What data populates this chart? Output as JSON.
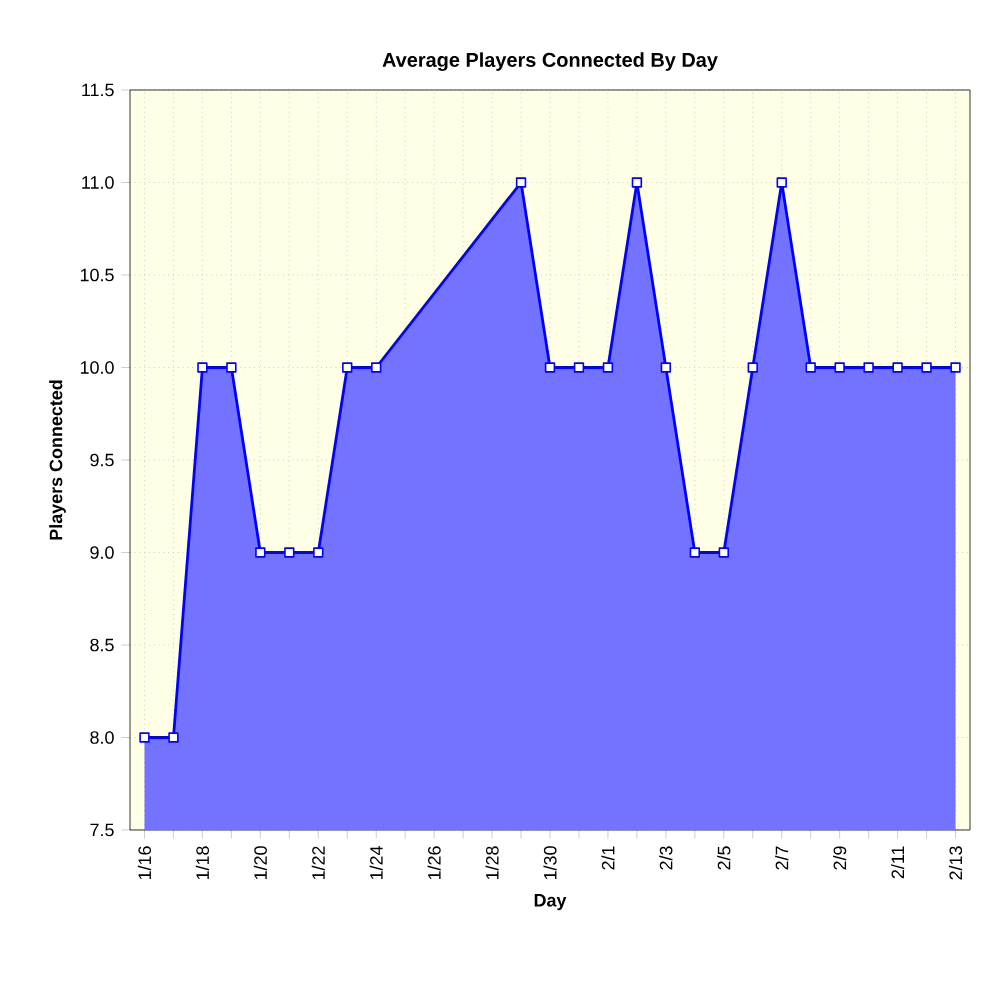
{
  "chart_data": {
    "type": "area",
    "title": "Average Players Connected By Day",
    "xlabel": "Day",
    "ylabel": "Players Connected",
    "categories": [
      "1/16",
      null,
      "1/18",
      null,
      "1/20",
      null,
      "1/22",
      null,
      "1/24",
      null,
      "1/26",
      null,
      "1/28",
      null,
      "1/30",
      null,
      "2/1",
      null,
      "2/3",
      null,
      "2/5",
      null,
      "2/7",
      null,
      "2/9",
      null,
      "2/11",
      null,
      "2/13"
    ],
    "values": [
      8,
      8,
      10,
      10,
      9,
      9,
      9,
      10,
      10,
      null,
      null,
      null,
      null,
      11,
      10,
      10,
      10,
      11,
      10,
      9,
      9,
      10,
      11,
      10,
      10,
      10,
      10,
      10,
      10
    ],
    "color": "#0000ff",
    "ylim": [
      7.5,
      11.5
    ],
    "yticks": [
      {
        "value": 7.5,
        "label": "7.5"
      },
      {
        "value": 8,
        "label": "8.0"
      },
      {
        "value": 8.5,
        "label": "8.5"
      },
      {
        "value": 9,
        "label": "9.0"
      },
      {
        "value": 9.5,
        "label": "9.5"
      },
      {
        "value": 10,
        "label": "10.0"
      },
      {
        "value": 10.5,
        "label": "10.5"
      },
      {
        "value": 11,
        "label": "11.0"
      },
      {
        "value": 11.5,
        "label": "11.5"
      }
    ],
    "grid": true,
    "marker": "square",
    "line_style": "solid"
  }
}
